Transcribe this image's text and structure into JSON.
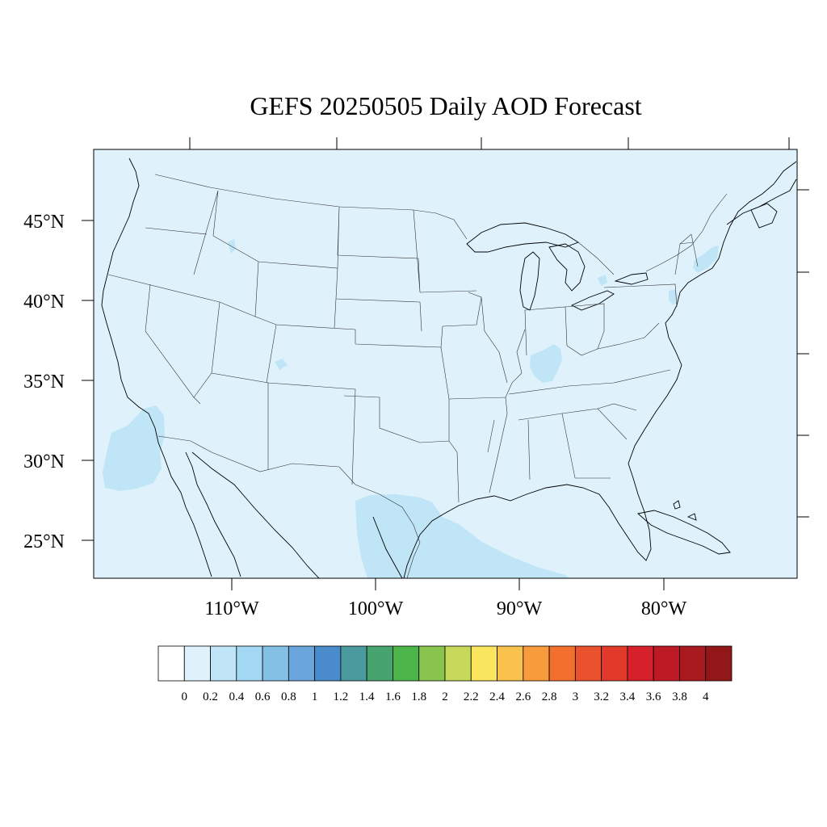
{
  "title": "GEFS 20250505 Daily AOD Forecast",
  "map": {
    "lat_labels": [
      "45°N",
      "40°N",
      "35°N",
      "30°N",
      "25°N"
    ],
    "lon_labels": [
      "110°W",
      "100°W",
      "90°W",
      "80°W"
    ],
    "background_color": "#dff2fb",
    "border_color": "#000000"
  },
  "aod_features": [
    {
      "name": "pacific-baja-aod",
      "level": 0.3,
      "color": "#bfe5f7"
    },
    {
      "name": "gulf-of-mexico-aod",
      "level": 0.3,
      "color": "#bfe5f7"
    },
    {
      "name": "kentucky-aod",
      "level": 0.3,
      "color": "#bfe5f7"
    },
    {
      "name": "northeast-aod",
      "level": 0.3,
      "color": "#bfe5f7"
    },
    {
      "name": "idaho-aod",
      "level": 0.3,
      "color": "#bfe5f7"
    },
    {
      "name": "new-mexico-aod",
      "level": 0.3,
      "color": "#bfe5f7"
    }
  ],
  "colorbar": {
    "levels": [
      "0",
      "0.2",
      "0.4",
      "0.6",
      "0.8",
      "1",
      "1.2",
      "1.4",
      "1.6",
      "1.8",
      "2",
      "2.2",
      "2.4",
      "2.6",
      "2.8",
      "3",
      "3.2",
      "3.4",
      "3.6",
      "3.8",
      "4"
    ],
    "colors": [
      "#ffffff",
      "#dff2fb",
      "#bfe5f7",
      "#a2d8f3",
      "#84bfe6",
      "#6aa6db",
      "#4a8bcb",
      "#4a9a9e",
      "#48a46e",
      "#4cb54a",
      "#89c54e",
      "#c6d95a",
      "#f9e65e",
      "#f8c24c",
      "#f79b3d",
      "#f26f2e",
      "#ea522d",
      "#e23a2a",
      "#d6202a",
      "#bd1a25",
      "#a91a20",
      "#911719"
    ]
  }
}
